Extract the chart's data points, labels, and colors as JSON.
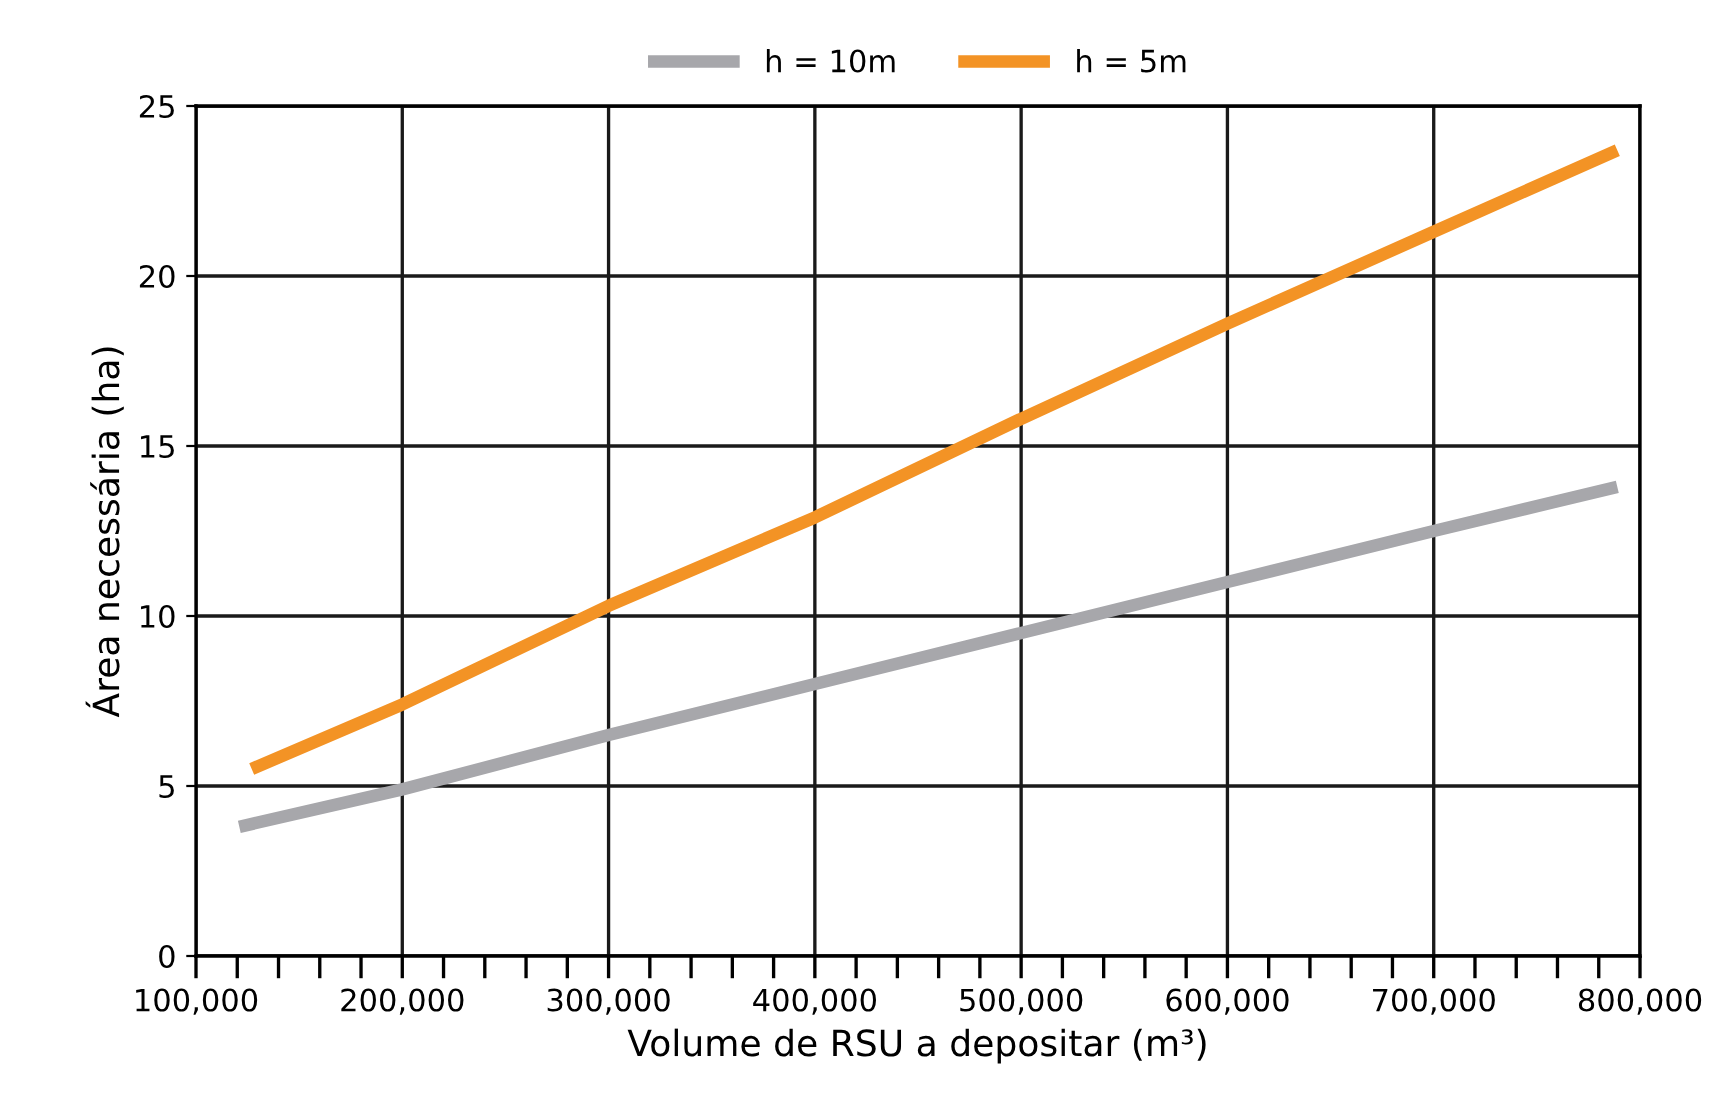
{
  "chart_data": {
    "type": "line",
    "xlabel": "Volume de RSU a depositar (m³)",
    "ylabel": "Área necessária (ha)",
    "series": [
      {
        "name": "h = 10m",
        "color": "#a7a7ab",
        "x": [
          121000,
          200000,
          300000,
          400000,
          500000,
          600000,
          700000,
          789000
        ],
        "values": [
          3.8,
          4.9,
          6.5,
          8.0,
          9.5,
          11.0,
          12.5,
          13.8
        ]
      },
      {
        "name": "h = 5m",
        "color": "#f39325",
        "x": [
          127000,
          200000,
          300000,
          400000,
          500000,
          600000,
          700000,
          789000
        ],
        "values": [
          5.5,
          7.4,
          10.3,
          12.9,
          15.8,
          18.6,
          21.3,
          23.7
        ]
      }
    ],
    "xlim": [
      100000,
      800000
    ],
    "ylim": [
      0,
      25
    ],
    "xticks": [
      {
        "value": 100000,
        "label": "100,000"
      },
      {
        "value": 200000,
        "label": "200,000"
      },
      {
        "value": 300000,
        "label": "300,000"
      },
      {
        "value": 400000,
        "label": "400,000"
      },
      {
        "value": 500000,
        "label": "500,000"
      },
      {
        "value": 600000,
        "label": "600,000"
      },
      {
        "value": 700000,
        "label": "700,000"
      },
      {
        "value": 800000,
        "label": "800,000"
      }
    ],
    "yticks": [
      0,
      5,
      10,
      15,
      20,
      25
    ],
    "grid": true,
    "legend": "top",
    "marker": "none",
    "line_style": "solid"
  }
}
